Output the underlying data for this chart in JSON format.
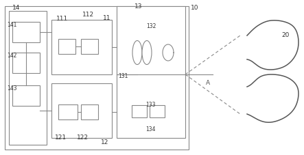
{
  "bg_color": "#ffffff",
  "line_color": "#888888",
  "box_color": "#ffffff",
  "box_edge": "#888888",
  "label_color": "#333333",
  "fig_width": 4.43,
  "fig_height": 2.27,
  "dpi": 100
}
